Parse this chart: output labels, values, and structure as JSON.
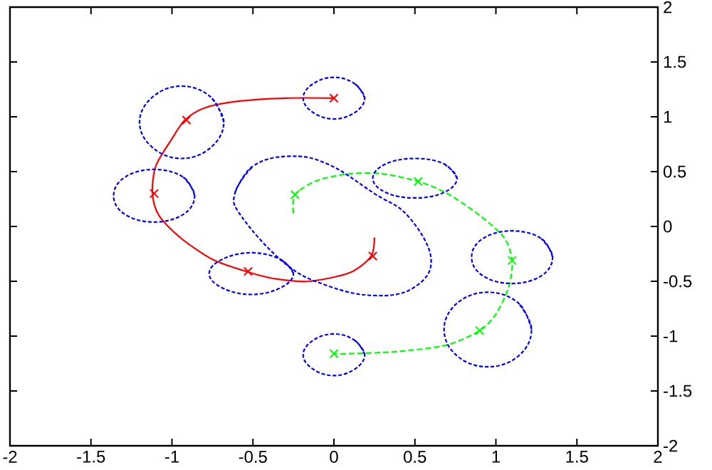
{
  "chart_data": {
    "type": "line",
    "xlim": [
      -2,
      2
    ],
    "ylim": [
      -2,
      2
    ],
    "xticks": [
      -2,
      -1.5,
      -1,
      -0.5,
      0,
      0.5,
      1,
      1.5,
      2
    ],
    "yticks": [
      -2,
      -1.5,
      -1,
      -0.5,
      0,
      0.5,
      1,
      1.5,
      2
    ],
    "grid": false,
    "series": [
      {
        "type": "line",
        "color": "#ff0000",
        "line_style": "solid",
        "marker": "none",
        "x": [
          0.25,
          0.23,
          0.1,
          -0.15,
          -0.35,
          -0.52,
          -0.75,
          -0.95,
          -1.08,
          -1.12,
          -1.1,
          -1.0,
          -0.92,
          -0.8,
          -0.6,
          -0.3,
          0
        ],
        "values": [
          -0.1,
          -0.27,
          -0.42,
          -0.5,
          -0.48,
          -0.42,
          -0.3,
          -0.1,
          0.1,
          0.3,
          0.55,
          0.8,
          0.97,
          1.08,
          1.14,
          1.17,
          1.17
        ]
      },
      {
        "type": "scatter",
        "color": "#ff0000",
        "marker": "cross",
        "x": [
          0,
          -0.91,
          -1.11,
          -0.53,
          0.24
        ],
        "values": [
          1.17,
          0.97,
          0.3,
          -0.41,
          -0.27
        ]
      },
      {
        "type": "line",
        "color": "#00ff00",
        "line_style": "dashed",
        "marker": "none",
        "x": [
          -0.25,
          -0.24,
          -0.1,
          0.1,
          0.3,
          0.52,
          0.7,
          0.9,
          1.05,
          1.1,
          1.08,
          1.0,
          0.9,
          0.7,
          0.4,
          0.1,
          0
        ],
        "values": [
          0.12,
          0.29,
          0.42,
          0.48,
          0.48,
          0.41,
          0.3,
          0.1,
          -0.1,
          -0.31,
          -0.55,
          -0.8,
          -0.95,
          -1.08,
          -1.14,
          -1.16,
          -1.16
        ]
      },
      {
        "type": "scatter",
        "color": "#00ff00",
        "marker": "cross",
        "x": [
          -0.24,
          0.52,
          1.1,
          0.9,
          0
        ],
        "values": [
          0.29,
          0.41,
          -0.31,
          -0.95,
          -1.16
        ]
      },
      {
        "type": "line",
        "color": "#0000ff",
        "line_style": "dotted",
        "marker": "none",
        "x": [
          0.19,
          0.13,
          0,
          -0.13,
          -0.19,
          -0.13,
          0,
          0.13,
          0.19,
          0.13
        ],
        "values": [
          1.17,
          1.3,
          1.36,
          1.3,
          1.17,
          1.04,
          0.98,
          1.04,
          1.17,
          1.3
        ]
      },
      {
        "type": "line",
        "color": "#0000ff",
        "line_style": "dotted",
        "marker": "none",
        "x": [
          -0.68,
          -0.76,
          -0.94,
          -1.12,
          -1.2,
          -1.12,
          -0.94,
          -0.76,
          -0.68,
          -0.76
        ],
        "values": [
          0.95,
          1.18,
          1.28,
          1.18,
          0.95,
          0.72,
          0.62,
          0.72,
          0.95,
          1.18
        ]
      },
      {
        "type": "line",
        "color": "#0000ff",
        "line_style": "dotted",
        "marker": "none",
        "x": [
          -0.86,
          -0.93,
          -1.11,
          -1.29,
          -1.36,
          -1.29,
          -1.11,
          -0.93,
          -0.86,
          -0.93
        ],
        "values": [
          0.28,
          0.45,
          0.52,
          0.45,
          0.28,
          0.11,
          0.04,
          0.11,
          0.28,
          0.45
        ]
      },
      {
        "type": "line",
        "color": "#0000ff",
        "line_style": "dotted",
        "marker": "none",
        "x": [
          -0.25,
          -0.33,
          -0.51,
          -0.69,
          -0.77,
          -0.69,
          -0.51,
          -0.33,
          -0.25,
          -0.33
        ],
        "values": [
          -0.43,
          -0.3,
          -0.24,
          -0.3,
          -0.43,
          -0.56,
          -0.62,
          -0.56,
          -0.43,
          -0.3
        ]
      },
      {
        "type": "line",
        "color": "#0000ff",
        "line_style": "dotted",
        "marker": "none",
        "x": [
          -0.61,
          -0.5,
          -0.28,
          -0.04,
          0.25,
          0.46,
          0.6,
          0.49,
          0.25,
          -0.04,
          -0.3,
          -0.57,
          -0.61,
          -0.5
        ],
        "values": [
          0.31,
          0.55,
          0.64,
          0.57,
          0.3,
          0.09,
          -0.3,
          -0.56,
          -0.63,
          -0.54,
          -0.34,
          0.09,
          0.31,
          0.55
        ]
      },
      {
        "type": "line",
        "color": "#0000ff",
        "line_style": "dotted",
        "marker": "none",
        "x": [
          0.76,
          0.68,
          0.5,
          0.32,
          0.24,
          0.32,
          0.5,
          0.68,
          0.76,
          0.68
        ],
        "values": [
          0.44,
          0.57,
          0.62,
          0.57,
          0.44,
          0.31,
          0.26,
          0.31,
          0.44,
          0.57
        ]
      },
      {
        "type": "line",
        "color": "#0000ff",
        "line_style": "dotted",
        "marker": "none",
        "x": [
          1.35,
          1.28,
          1.1,
          0.92,
          0.85,
          0.92,
          1.1,
          1.28,
          1.35,
          1.28
        ],
        "values": [
          -0.28,
          -0.11,
          -0.04,
          -0.11,
          -0.28,
          -0.45,
          -0.52,
          -0.45,
          -0.28,
          -0.11
        ]
      },
      {
        "type": "line",
        "color": "#0000ff",
        "line_style": "dotted",
        "marker": "none",
        "x": [
          1.22,
          1.14,
          0.95,
          0.76,
          0.68,
          0.76,
          0.95,
          1.14,
          1.22,
          1.14
        ],
        "values": [
          -0.94,
          -0.7,
          -0.6,
          -0.7,
          -0.94,
          -1.18,
          -1.28,
          -1.18,
          -0.94,
          -0.7
        ]
      },
      {
        "type": "line",
        "color": "#0000ff",
        "line_style": "dotted",
        "marker": "none",
        "x": [
          0.19,
          0.13,
          0,
          -0.13,
          -0.19,
          -0.13,
          0,
          0.13,
          0.19,
          0.13
        ],
        "values": [
          -1.17,
          -1.04,
          -0.98,
          -1.04,
          -1.17,
          -1.3,
          -1.36,
          -1.3,
          -1.17,
          -1.04
        ]
      }
    ]
  }
}
